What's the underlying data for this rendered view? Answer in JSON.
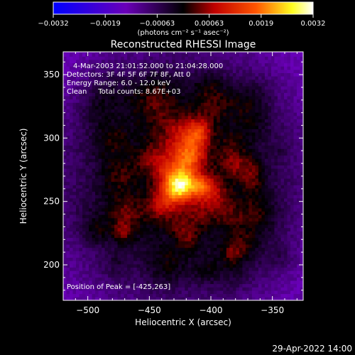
{
  "chart_data": {
    "type": "heatmap",
    "title": "Reconstructed RHESSI Image",
    "xlabel": "Heliocentric X (arcsec)",
    "ylabel": "Heliocentric Y (arcsec)",
    "xlim": [
      -520,
      -325
    ],
    "ylim": [
      172,
      368
    ],
    "xticks": [
      -500,
      -450,
      -400,
      -350
    ],
    "yticks": [
      200,
      250,
      300,
      350
    ],
    "colorbar": {
      "range": [
        -0.0032,
        0.0032
      ],
      "ticks": [
        "-0.0032",
        "-0.0019",
        "-0.00063",
        "0.00063",
        "0.0019",
        "0.0032"
      ],
      "unit_label": "(photons cm⁻² s⁻¹ asec⁻²)",
      "colors": [
        "#0000ff",
        "#6a00b8",
        "#000000",
        "#c00000",
        "#ff5500",
        "#ffff20",
        "#ffffff"
      ]
    },
    "annotations": {
      "time_range": "4-Mar-2003 21:01:52.000 to 21:04:28.000",
      "detectors": "Detectors: 3F 4F 5F 6F 7F 8F, Att 0",
      "energy_range": "Energy Range: 6.0 - 12.0 keV",
      "method": "Clean     Total counts: 8.67E+03",
      "peak_position": "Position of Peak = [-425,263]"
    },
    "peak": {
      "x": -425,
      "y": 263,
      "value": 0.0032
    }
  },
  "footer": {
    "date": "29-Apr-2022 14:00"
  }
}
